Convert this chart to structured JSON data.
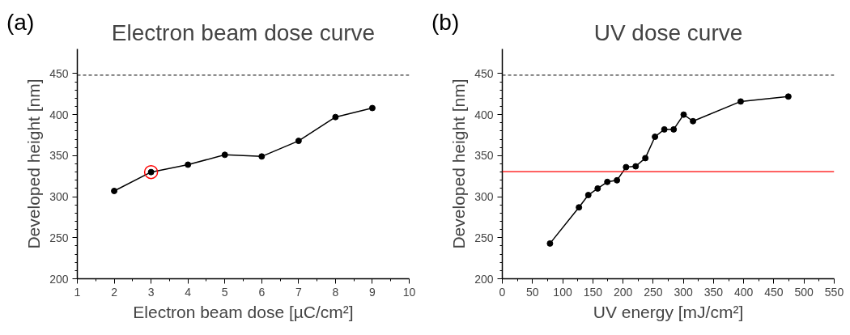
{
  "chart_data": [
    {
      "type": "line",
      "title": "Electron beam dose curve",
      "xlabel": "Electron beam dose [µC/cm²]",
      "ylabel": "Developed height [nm]",
      "annotations": [
        "(a)"
      ],
      "xlim": [
        1,
        10
      ],
      "xticks": [
        1,
        2,
        3,
        4,
        5,
        6,
        7,
        8,
        9,
        10
      ],
      "ylim": [
        200,
        480
      ],
      "yticks": [
        200,
        250,
        300,
        350,
        400,
        450
      ],
      "grid": false,
      "marker": "circle",
      "line_style": "solid",
      "ref_lines": [
        {
          "axis": "y",
          "value": 448,
          "label": null,
          "color": "#333333",
          "line_style": "dashed"
        }
      ],
      "series": [
        {
          "color": "#000000",
          "x": [
            2,
            3,
            4,
            5,
            6,
            7,
            8,
            9
          ],
          "values": [
            307,
            330,
            339,
            351,
            349,
            368,
            397,
            408
          ]
        },
        {
          "type": "scatter",
          "color": "#ff0000",
          "marker": "circle",
          "x": [
            3
          ],
          "values": [
            330
          ]
        }
      ]
    },
    {
      "type": "line",
      "title": "UV dose curve",
      "xlabel": "UV energy [mJ/cm²]",
      "ylabel": "Developed height [nm]",
      "annotations": [
        "(b)"
      ],
      "xlim": [
        0,
        550
      ],
      "xticks": [
        0,
        50,
        100,
        150,
        200,
        250,
        300,
        350,
        400,
        450,
        500,
        550
      ],
      "ylim": [
        200,
        480
      ],
      "yticks": [
        200,
        250,
        300,
        350,
        400,
        450
      ],
      "grid": false,
      "marker": "circle",
      "line_style": "solid",
      "ref_lines": [
        {
          "axis": "y",
          "value": 448,
          "label": null,
          "color": "#333333",
          "line_style": "dashed"
        },
        {
          "axis": "y",
          "value": 330.5,
          "label": null,
          "color": "#ff0000",
          "line_style": "solid"
        }
      ],
      "series": [
        {
          "color": "#000000",
          "x": [
            79,
            127,
            142.5,
            158,
            174,
            190,
            205,
            221,
            237,
            253,
            268.5,
            284,
            300.5,
            316,
            395,
            474
          ],
          "values": [
            243,
            287,
            302,
            310,
            318,
            320,
            336,
            337,
            347,
            373,
            382,
            382,
            400,
            392,
            416,
            422
          ]
        }
      ]
    }
  ]
}
